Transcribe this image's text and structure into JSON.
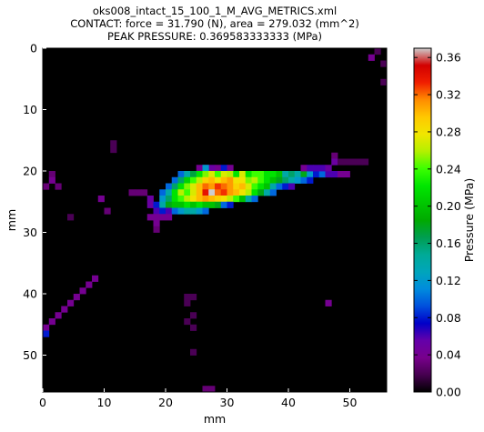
{
  "chart_data": {
    "type": "heatmap",
    "title_lines": [
      "oks008_intact_15_100_1_M_AVG_METRICS.xml",
      "CONTACT: force = 31.790 (N), area = 279.032 (mm^2)",
      "PEAK PRESSURE: 0.369583333333 (MPa)"
    ],
    "xlabel": "mm",
    "ylabel": "mm",
    "xlim": [
      0,
      56
    ],
    "ylim": [
      56,
      0
    ],
    "x_ticks": [
      0,
      10,
      20,
      30,
      40,
      50
    ],
    "y_ticks": [
      0,
      10,
      20,
      30,
      40,
      50
    ],
    "grid": false,
    "colormap": "nipy_spectral",
    "colorbar": {
      "label": "Pressure (MPa)",
      "range": [
        0.0,
        0.37
      ],
      "ticks": [
        0.0,
        0.04,
        0.08,
        0.12,
        0.16,
        0.2,
        0.24,
        0.28,
        0.32,
        0.36
      ],
      "tick_labels": [
        "0.00",
        "0.04",
        "0.08",
        "0.12",
        "0.16",
        "0.20",
        "0.24",
        "0.28",
        "0.32",
        "0.36"
      ]
    },
    "cells_note": "each cell [x, y, pressure_MPa]",
    "cells": [
      [
        54,
        0,
        0.02
      ],
      [
        53,
        1,
        0.04
      ],
      [
        55,
        2,
        0.02
      ],
      [
        55,
        5,
        0.02
      ],
      [
        11,
        15,
        0.02
      ],
      [
        11,
        16,
        0.02
      ],
      [
        47,
        17,
        0.03
      ],
      [
        47,
        18,
        0.05
      ],
      [
        48,
        18,
        0.02
      ],
      [
        49,
        18,
        0.02
      ],
      [
        50,
        18,
        0.02
      ],
      [
        51,
        18,
        0.02
      ],
      [
        52,
        18,
        0.02
      ],
      [
        28,
        19,
        0.04
      ],
      [
        29,
        19,
        0.08
      ],
      [
        30,
        19,
        0.04
      ],
      [
        26,
        19,
        0.05
      ],
      [
        27,
        19,
        0.05
      ],
      [
        25,
        19,
        0.04
      ],
      [
        26,
        19,
        0.12
      ],
      [
        1,
        20,
        0.03
      ],
      [
        22,
        20,
        0.1
      ],
      [
        23,
        20,
        0.14
      ],
      [
        24,
        20,
        0.17
      ],
      [
        25,
        20,
        0.22
      ],
      [
        26,
        20,
        0.25
      ],
      [
        27,
        20,
        0.27
      ],
      [
        28,
        20,
        0.24
      ],
      [
        29,
        20,
        0.27
      ],
      [
        30,
        20,
        0.26
      ],
      [
        31,
        20,
        0.22
      ],
      [
        32,
        20,
        0.27
      ],
      [
        33,
        20,
        0.22
      ],
      [
        34,
        20,
        0.24
      ],
      [
        35,
        20,
        0.24
      ],
      [
        36,
        20,
        0.22
      ],
      [
        37,
        20,
        0.22
      ],
      [
        38,
        20,
        0.2
      ],
      [
        39,
        20,
        0.14
      ],
      [
        40,
        20,
        0.16
      ],
      [
        41,
        20,
        0.14
      ],
      [
        42,
        20,
        0.18
      ],
      [
        43,
        20,
        0.12
      ],
      [
        44,
        20,
        0.08
      ],
      [
        45,
        20,
        0.1
      ],
      [
        46,
        20,
        0.06
      ],
      [
        47,
        20,
        0.06
      ],
      [
        48,
        20,
        0.04
      ],
      [
        49,
        20,
        0.04
      ],
      [
        42,
        19,
        0.04
      ],
      [
        43,
        19,
        0.06
      ],
      [
        44,
        19,
        0.06
      ],
      [
        45,
        19,
        0.06
      ],
      [
        46,
        19,
        0.05
      ],
      [
        1,
        21,
        0.04
      ],
      [
        21,
        21,
        0.1
      ],
      [
        22,
        21,
        0.16
      ],
      [
        23,
        21,
        0.21
      ],
      [
        24,
        21,
        0.24
      ],
      [
        25,
        21,
        0.26
      ],
      [
        26,
        21,
        0.29
      ],
      [
        27,
        21,
        0.3
      ],
      [
        28,
        21,
        0.28
      ],
      [
        29,
        21,
        0.3
      ],
      [
        30,
        21,
        0.31
      ],
      [
        31,
        21,
        0.28
      ],
      [
        32,
        21,
        0.28
      ],
      [
        33,
        21,
        0.25
      ],
      [
        34,
        21,
        0.26
      ],
      [
        35,
        21,
        0.24
      ],
      [
        36,
        21,
        0.22
      ],
      [
        37,
        21,
        0.2
      ],
      [
        38,
        21,
        0.18
      ],
      [
        39,
        21,
        0.16
      ],
      [
        40,
        21,
        0.14
      ],
      [
        41,
        21,
        0.12
      ],
      [
        42,
        21,
        0.1
      ],
      [
        43,
        21,
        0.08
      ],
      [
        0,
        22,
        0.03
      ],
      [
        2,
        22,
        0.03
      ],
      [
        20,
        22,
        0.1
      ],
      [
        21,
        22,
        0.16
      ],
      [
        22,
        22,
        0.22
      ],
      [
        23,
        22,
        0.25
      ],
      [
        24,
        22,
        0.27
      ],
      [
        25,
        22,
        0.3
      ],
      [
        26,
        22,
        0.32
      ],
      [
        27,
        22,
        0.31
      ],
      [
        28,
        22,
        0.33
      ],
      [
        29,
        22,
        0.32
      ],
      [
        30,
        22,
        0.31
      ],
      [
        31,
        22,
        0.29
      ],
      [
        32,
        22,
        0.3
      ],
      [
        33,
        22,
        0.27
      ],
      [
        34,
        22,
        0.24
      ],
      [
        35,
        22,
        0.22
      ],
      [
        36,
        22,
        0.2
      ],
      [
        37,
        22,
        0.14
      ],
      [
        38,
        22,
        0.1
      ],
      [
        39,
        22,
        0.08
      ],
      [
        40,
        22,
        0.06
      ],
      [
        14,
        23,
        0.03
      ],
      [
        15,
        23,
        0.03
      ],
      [
        16,
        23,
        0.03
      ],
      [
        19,
        23,
        0.1
      ],
      [
        20,
        23,
        0.14
      ],
      [
        21,
        23,
        0.22
      ],
      [
        22,
        23,
        0.26
      ],
      [
        23,
        23,
        0.24
      ],
      [
        24,
        23,
        0.27
      ],
      [
        25,
        23,
        0.3
      ],
      [
        26,
        23,
        0.34
      ],
      [
        27,
        23,
        0.37
      ],
      [
        28,
        23,
        0.32
      ],
      [
        29,
        23,
        0.33
      ],
      [
        30,
        23,
        0.31
      ],
      [
        31,
        23,
        0.3
      ],
      [
        32,
        23,
        0.28
      ],
      [
        33,
        23,
        0.26
      ],
      [
        34,
        23,
        0.22
      ],
      [
        35,
        23,
        0.18
      ],
      [
        36,
        23,
        0.14
      ],
      [
        37,
        23,
        0.1
      ],
      [
        9,
        24,
        0.04
      ],
      [
        17,
        24,
        0.05
      ],
      [
        19,
        24,
        0.12
      ],
      [
        20,
        24,
        0.16
      ],
      [
        21,
        24,
        0.22
      ],
      [
        22,
        24,
        0.24
      ],
      [
        23,
        24,
        0.26
      ],
      [
        24,
        24,
        0.28
      ],
      [
        25,
        24,
        0.3
      ],
      [
        26,
        24,
        0.31
      ],
      [
        27,
        24,
        0.3
      ],
      [
        28,
        24,
        0.29
      ],
      [
        29,
        24,
        0.28
      ],
      [
        30,
        24,
        0.26
      ],
      [
        31,
        24,
        0.24
      ],
      [
        32,
        24,
        0.2
      ],
      [
        33,
        24,
        0.14
      ],
      [
        34,
        24,
        0.1
      ],
      [
        17,
        25,
        0.05
      ],
      [
        18,
        25,
        0.08
      ],
      [
        19,
        25,
        0.14
      ],
      [
        20,
        25,
        0.18
      ],
      [
        21,
        25,
        0.2
      ],
      [
        22,
        25,
        0.2
      ],
      [
        23,
        25,
        0.22
      ],
      [
        24,
        25,
        0.2
      ],
      [
        25,
        25,
        0.22
      ],
      [
        26,
        25,
        0.2
      ],
      [
        27,
        25,
        0.2
      ],
      [
        28,
        25,
        0.18
      ],
      [
        29,
        25,
        0.1
      ],
      [
        30,
        25,
        0.08
      ],
      [
        10,
        26,
        0.03
      ],
      [
        18,
        26,
        0.06
      ],
      [
        19,
        26,
        0.08
      ],
      [
        20,
        26,
        0.06
      ],
      [
        21,
        26,
        0.1
      ],
      [
        22,
        26,
        0.12
      ],
      [
        23,
        26,
        0.14
      ],
      [
        24,
        26,
        0.14
      ],
      [
        25,
        26,
        0.12
      ],
      [
        26,
        26,
        0.1
      ],
      [
        4,
        27,
        0.02
      ],
      [
        17,
        27,
        0.04
      ],
      [
        18,
        27,
        0.04
      ],
      [
        19,
        27,
        0.04
      ],
      [
        20,
        27,
        0.04
      ],
      [
        18,
        28,
        0.04
      ],
      [
        18,
        29,
        0.03
      ],
      [
        8,
        37,
        0.04
      ],
      [
        7,
        38,
        0.04
      ],
      [
        6,
        39,
        0.04
      ],
      [
        5,
        40,
        0.04
      ],
      [
        4,
        41,
        0.04
      ],
      [
        3,
        42,
        0.04
      ],
      [
        2,
        43,
        0.04
      ],
      [
        1,
        44,
        0.04
      ],
      [
        0,
        45,
        0.04
      ],
      [
        0,
        46,
        0.08
      ],
      [
        23,
        40,
        0.02
      ],
      [
        24,
        40,
        0.02
      ],
      [
        23,
        41,
        0.02
      ],
      [
        46,
        41,
        0.04
      ],
      [
        24,
        43,
        0.02
      ],
      [
        23,
        44,
        0.02
      ],
      [
        24,
        45,
        0.02
      ],
      [
        24,
        49,
        0.02
      ],
      [
        26,
        55,
        0.03
      ],
      [
        27,
        55,
        0.03
      ]
    ]
  }
}
